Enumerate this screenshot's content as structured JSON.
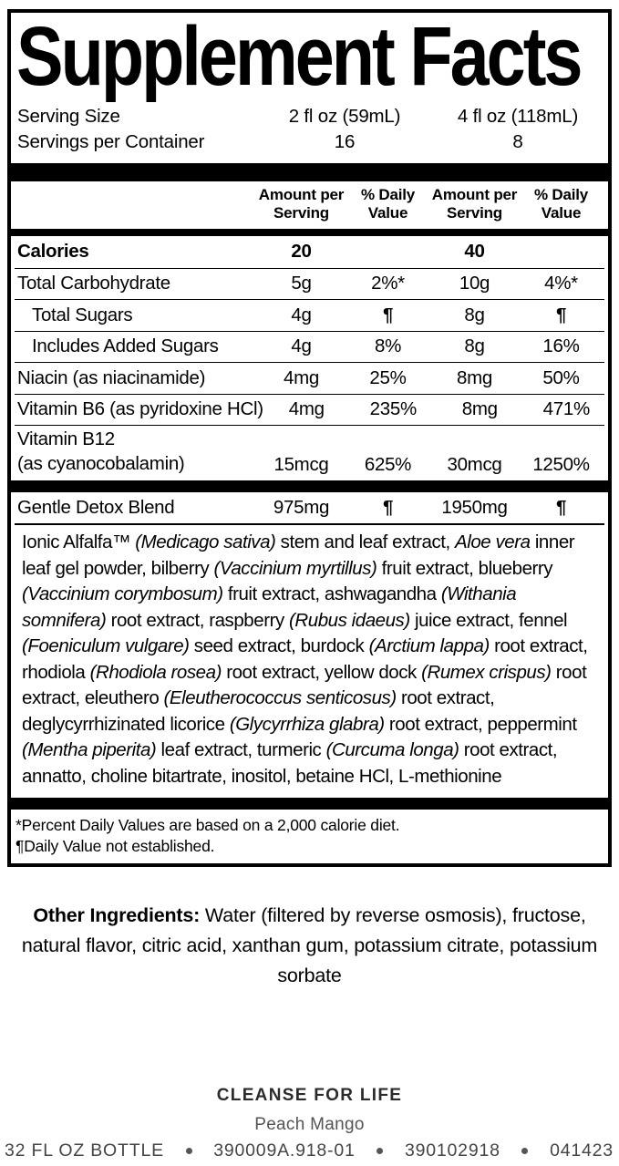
{
  "facts": {
    "title": "Supplement Facts",
    "serving": {
      "rows": [
        {
          "label": "Serving Size",
          "v1": "2 fl oz (59mL)",
          "v2": "4 fl oz (118mL)"
        },
        {
          "label": "Servings per Container",
          "v1": "16",
          "v2": "8"
        }
      ]
    },
    "column_headers": [
      "Amount per\nServing",
      "% Daily\nValue",
      "Amount per\nServing",
      "% Daily\nValue"
    ],
    "rows": [
      {
        "name": "Calories",
        "amount1": "20",
        "dv1": "",
        "amount2": "40",
        "dv2": ""
      },
      {
        "name": "Total Carbohydrate",
        "amount1": "5g",
        "dv1": "2%*",
        "amount2": "10g",
        "dv2": "4%*"
      },
      {
        "name": "Total Sugars",
        "amount1": "4g",
        "dv1": "¶",
        "amount2": "8g",
        "dv2": "¶"
      },
      {
        "name": "Includes Added Sugars",
        "amount1": "4g",
        "dv1": "8%",
        "amount2": "8g",
        "dv2": "16%"
      },
      {
        "name": "Niacin (as niacinamide)",
        "amount1": "4mg",
        "dv1": "25%",
        "amount2": "8mg",
        "dv2": "50%"
      },
      {
        "name": "Vitamin B6 (as pyridoxine HCl)",
        "amount1": "4mg",
        "dv1": "235%",
        "amount2": "8mg",
        "dv2": "471%"
      },
      {
        "name": "Vitamin B12",
        "name2": "(as cyanocobalamin)",
        "amount1": "15mcg",
        "dv1": "625%",
        "amount2": "30mcg",
        "dv2": "1250%"
      }
    ],
    "blend_row": {
      "name": "Gentle Detox Blend",
      "amount1": "975mg",
      "dv1": "¶",
      "amount2": "1950mg",
      "dv2": "¶"
    },
    "blend_description": [
      {
        "t": "Ionic Alfalfa™ ",
        "i": false
      },
      {
        "t": "(Medicago sativa)",
        "i": true
      },
      {
        "t": " stem and leaf extract, ",
        "i": false
      },
      {
        "t": "Aloe vera",
        "i": true
      },
      {
        "t": " inner leaf gel powder, bilberry ",
        "i": false
      },
      {
        "t": "(Vaccinium myrtillus)",
        "i": true
      },
      {
        "t": " fruit extract, blueberry ",
        "i": false
      },
      {
        "t": "(Vaccinium corymbosum)",
        "i": true
      },
      {
        "t": " fruit extract, ashwagandha ",
        "i": false
      },
      {
        "t": "(Withania somnifera)",
        "i": true
      },
      {
        "t": " root extract, raspberry ",
        "i": false
      },
      {
        "t": "(Rubus idaeus)",
        "i": true
      },
      {
        "t": " juice extract, fennel ",
        "i": false
      },
      {
        "t": "(Foeniculum vulgare)",
        "i": true
      },
      {
        "t": " seed extract, burdock ",
        "i": false
      },
      {
        "t": "(Arctium lappa)",
        "i": true
      },
      {
        "t": " root extract, rhodiola ",
        "i": false
      },
      {
        "t": "(Rhodiola rosea)",
        "i": true
      },
      {
        "t": " root extract, yellow dock ",
        "i": false
      },
      {
        "t": "(Rumex crispus)",
        "i": true
      },
      {
        "t": " root extract, eleuthero ",
        "i": false
      },
      {
        "t": "(Eleutherococcus senticosus)",
        "i": true
      },
      {
        "t": " root extract, deglycyrrhizinated licorice ",
        "i": false
      },
      {
        "t": "(Glycyrrhiza glabra)",
        "i": true
      },
      {
        "t": " root extract, peppermint ",
        "i": false
      },
      {
        "t": "(Mentha piperita)",
        "i": true
      },
      {
        "t": " leaf extract, turmeric ",
        "i": false
      },
      {
        "t": "(Curcuma longa)",
        "i": true
      },
      {
        "t": " root extract, annatto, choline bitartrate, inositol, betaine HCl, L-methionine",
        "i": false
      }
    ],
    "footnotes": [
      "*Percent Daily Values are based on a 2,000 calorie diet.",
      "¶Daily Value not established."
    ]
  },
  "other_ingredients": {
    "label": "Other Ingredients:",
    "text": " Water (filtered by reverse osmosis), fructose, natural flavor, citric acid, xanthan gum, potassium citrate, potassium sorbate"
  },
  "footer": {
    "product": "CLEANSE FOR LIFE",
    "flavor": "Peach Mango",
    "codes": [
      "32 FL OZ BOTTLE",
      "390009A.918-01",
      "390102918",
      "041423"
    ]
  },
  "colors": {
    "label_text": "#000000",
    "footer_text": "#454545",
    "flavor_text": "#555555"
  }
}
